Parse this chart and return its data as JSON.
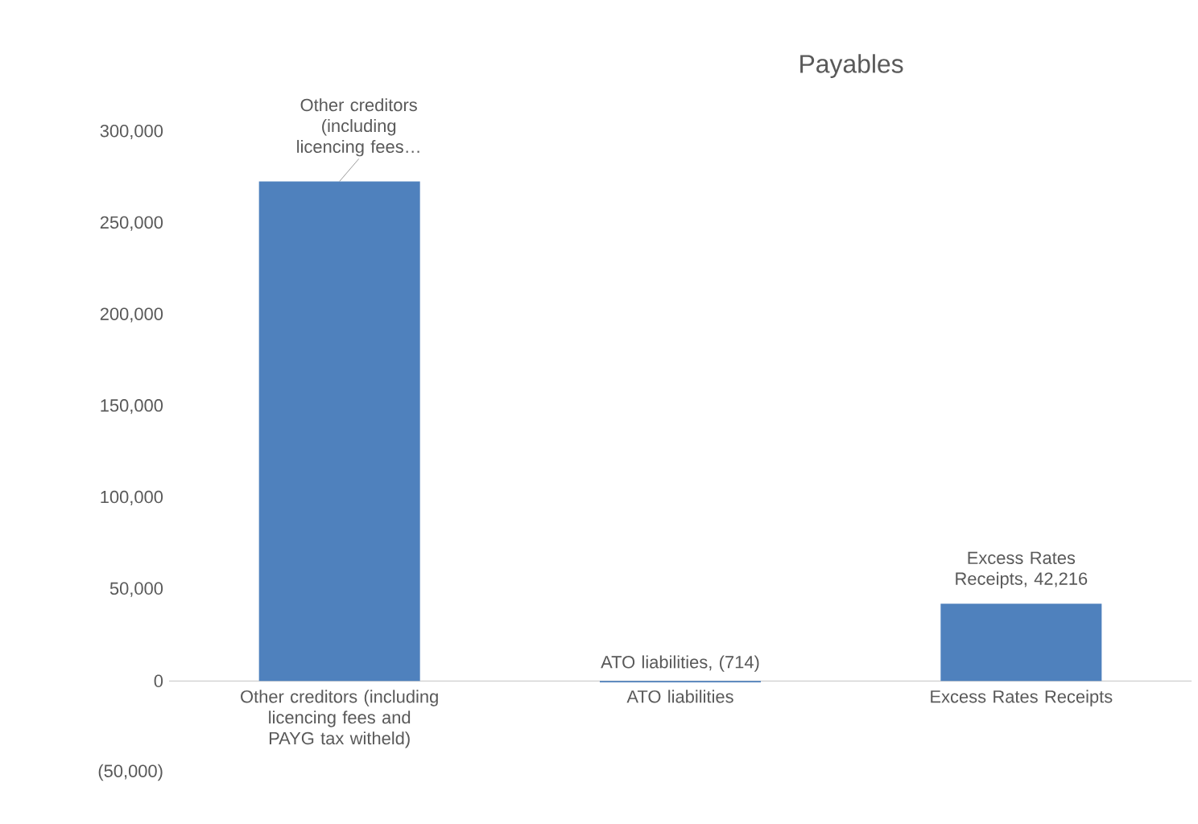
{
  "chart_data": {
    "type": "bar",
    "title": "Payables",
    "categories": [
      "Other creditors (including licencing fees and PAYG tax witheld)",
      "ATO liabilities",
      "Excess Rates Receipts"
    ],
    "values": [
      273000,
      -714,
      42216
    ],
    "color": "#4f81bd",
    "value_labels": [
      "Other creditors (including licencing fees…",
      "ATO liabilities, (714)",
      "Excess Rates Receipts, 42,216"
    ],
    "ylim": [
      -50000,
      300000
    ],
    "yticks": [
      {
        "value": -50000,
        "label": "(50,000)"
      },
      {
        "value": 0,
        "label": "0"
      },
      {
        "value": 50000,
        "label": "50,000"
      },
      {
        "value": 100000,
        "label": "100,000"
      },
      {
        "value": 150000,
        "label": "150,000"
      },
      {
        "value": 200000,
        "label": "200,000"
      },
      {
        "value": 250000,
        "label": "250,000"
      },
      {
        "value": 300000,
        "label": "300,000"
      }
    ],
    "grid": false
  }
}
